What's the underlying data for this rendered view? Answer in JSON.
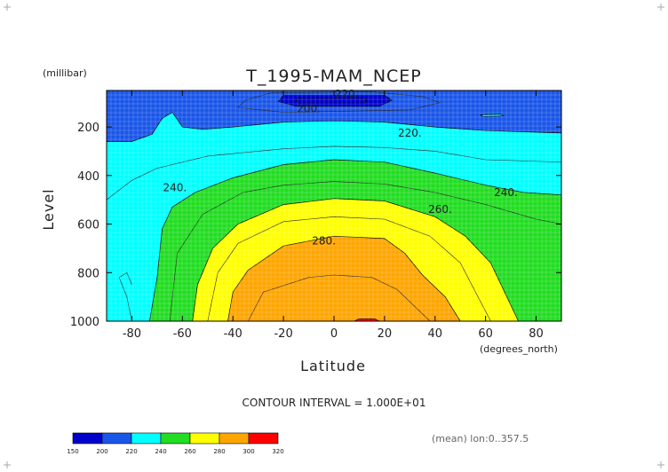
{
  "chart_data": {
    "type": "contour",
    "title": "T_1995-MAM_NCEP",
    "xlabel": "Latitude",
    "x_unit": "(degrees_north)",
    "ylabel": "Level",
    "y_unit": "(millibar)",
    "xlim": [
      -90,
      90
    ],
    "ylim": [
      1000,
      50
    ],
    "x_ticks": [
      -80,
      -60,
      -40,
      -20,
      0,
      20,
      40,
      60,
      80
    ],
    "x_tick_labels": [
      "-80",
      "-60",
      "-40",
      "-20",
      "0",
      "20",
      "40",
      "60",
      "80"
    ],
    "y_ticks": [
      200,
      400,
      600,
      800,
      1000
    ],
    "y_tick_labels": [
      "200",
      "400",
      "600",
      "800",
      "1000"
    ],
    "contour_interval_text": "CONTOUR INTERVAL = 1.000E+01",
    "averaging_note": "(mean) lon:0..357.5",
    "grid": true,
    "contour_labels": [
      {
        "text": "220.",
        "lat": 5,
        "level": 65
      },
      {
        "text": "200.",
        "lat": -10,
        "level": 125
      },
      {
        "text": "220.",
        "lat": 30,
        "level": 225
      },
      {
        "text": "240.",
        "lat": -63,
        "level": 450
      },
      {
        "text": "240.",
        "lat": 68,
        "level": 470
      },
      {
        "text": "260.",
        "lat": 42,
        "level": 540
      },
      {
        "text": "280.",
        "lat": -4,
        "level": 670
      }
    ],
    "color_bands": [
      {
        "min": 150,
        "max": 200,
        "color": "#0000cc"
      },
      {
        "min": 200,
        "max": 220,
        "color": "#1a56e8"
      },
      {
        "min": 220,
        "max": 240,
        "color": "#00ffff"
      },
      {
        "min": 240,
        "max": 260,
        "color": "#22dd22"
      },
      {
        "min": 260,
        "max": 280,
        "color": "#ffff00"
      },
      {
        "min": 280,
        "max": 300,
        "color": "#ffa500"
      },
      {
        "min": 300,
        "max": 320,
        "color": "#ff0000"
      }
    ],
    "colorbar_labels": [
      "150",
      "200",
      "220",
      "240",
      "260",
      "280",
      "300",
      "320"
    ],
    "regions": [
      {
        "name": "band-200-220",
        "color": "#1a56e8",
        "points": [
          [
            -90,
            50
          ],
          [
            90,
            50
          ],
          [
            90,
            225
          ],
          [
            60,
            215
          ],
          [
            40,
            200
          ],
          [
            20,
            180
          ],
          [
            0,
            175
          ],
          [
            -20,
            180
          ],
          [
            -40,
            200
          ],
          [
            -52,
            210
          ],
          [
            -60,
            200
          ],
          [
            -64,
            140
          ],
          [
            -68,
            165
          ],
          [
            -72,
            230
          ],
          [
            -80,
            260
          ],
          [
            -90,
            260
          ]
        ]
      },
      {
        "name": "core-below-200",
        "color": "#0000cc",
        "points": [
          [
            -20,
            70
          ],
          [
            20,
            70
          ],
          [
            23,
            90
          ],
          [
            18,
            115
          ],
          [
            -15,
            115
          ],
          [
            -22,
            95
          ]
        ]
      },
      {
        "name": "blob-below-200",
        "color": "#0000cc",
        "points": [
          [
            -14,
            80
          ],
          [
            12,
            80
          ],
          [
            13,
            88
          ],
          [
            12,
            102
          ],
          [
            -14,
            102
          ],
          [
            -15,
            90
          ]
        ]
      },
      {
        "name": "islet-220",
        "color": "#00ffff",
        "points": [
          [
            58,
            150
          ],
          [
            66,
            148
          ],
          [
            67,
            155
          ],
          [
            59,
            157
          ]
        ]
      },
      {
        "name": "band-240-260",
        "color": "#22dd22",
        "points": [
          [
            -73,
            1000
          ],
          [
            -70,
            820
          ],
          [
            -68,
            620
          ],
          [
            -64,
            530
          ],
          [
            -55,
            470
          ],
          [
            -40,
            410
          ],
          [
            -20,
            355
          ],
          [
            0,
            335
          ],
          [
            20,
            345
          ],
          [
            40,
            390
          ],
          [
            60,
            440
          ],
          [
            75,
            470
          ],
          [
            90,
            480
          ],
          [
            90,
            1000
          ]
        ]
      },
      {
        "name": "band-260-280",
        "color": "#ffff00",
        "points": [
          [
            -56,
            1000
          ],
          [
            -54,
            850
          ],
          [
            -48,
            700
          ],
          [
            -38,
            600
          ],
          [
            -20,
            520
          ],
          [
            0,
            495
          ],
          [
            20,
            505
          ],
          [
            40,
            570
          ],
          [
            52,
            650
          ],
          [
            62,
            760
          ],
          [
            73,
            1000
          ]
        ]
      },
      {
        "name": "band-280-300",
        "color": "#ffa500",
        "points": [
          [
            -42,
            1000
          ],
          [
            -40,
            880
          ],
          [
            -34,
            790
          ],
          [
            -20,
            690
          ],
          [
            0,
            650
          ],
          [
            20,
            660
          ],
          [
            28,
            720
          ],
          [
            35,
            810
          ],
          [
            44,
            900
          ],
          [
            50,
            1000
          ]
        ]
      },
      {
        "name": "core-above-300",
        "color": "#ff0000",
        "points": [
          [
            8,
            1000
          ],
          [
            10,
            990
          ],
          [
            16,
            990
          ],
          [
            18,
            1000
          ]
        ]
      }
    ],
    "contour_lines": [
      {
        "name": "isotherm-210",
        "points": [
          [
            -35,
            90
          ],
          [
            -25,
            60
          ],
          [
            15,
            55
          ],
          [
            35,
            75
          ],
          [
            42,
            100
          ],
          [
            30,
            130
          ],
          [
            -20,
            140
          ],
          [
            -38,
            120
          ],
          [
            -35,
            90
          ]
        ]
      },
      {
        "name": "isotherm-230",
        "points": [
          [
            -90,
            500
          ],
          [
            -80,
            420
          ],
          [
            -70,
            370
          ],
          [
            -50,
            320
          ],
          [
            -20,
            290
          ],
          [
            0,
            280
          ],
          [
            20,
            285
          ],
          [
            40,
            300
          ],
          [
            60,
            335
          ],
          [
            90,
            345
          ]
        ]
      },
      {
        "name": "isotherm-250",
        "points": [
          [
            -65,
            1000
          ],
          [
            -62,
            720
          ],
          [
            -52,
            560
          ],
          [
            -36,
            470
          ],
          [
            -20,
            440
          ],
          [
            0,
            425
          ],
          [
            20,
            435
          ],
          [
            40,
            470
          ],
          [
            60,
            520
          ],
          [
            80,
            580
          ],
          [
            90,
            600
          ]
        ]
      },
      {
        "name": "isotherm-270",
        "points": [
          [
            -50,
            1000
          ],
          [
            -46,
            800
          ],
          [
            -38,
            680
          ],
          [
            -20,
            590
          ],
          [
            0,
            570
          ],
          [
            20,
            580
          ],
          [
            38,
            650
          ],
          [
            50,
            760
          ],
          [
            62,
            1000
          ]
        ]
      },
      {
        "name": "isotherm-290",
        "points": [
          [
            -34,
            1000
          ],
          [
            -28,
            880
          ],
          [
            -10,
            820
          ],
          [
            0,
            810
          ],
          [
            15,
            820
          ],
          [
            25,
            870
          ],
          [
            38,
            1000
          ]
        ]
      },
      {
        "name": "west-arm-230",
        "points": [
          [
            -80,
            1000
          ],
          [
            -82,
            900
          ],
          [
            -85,
            820
          ],
          [
            -82,
            800
          ],
          [
            -80,
            850
          ]
        ]
      }
    ]
  }
}
